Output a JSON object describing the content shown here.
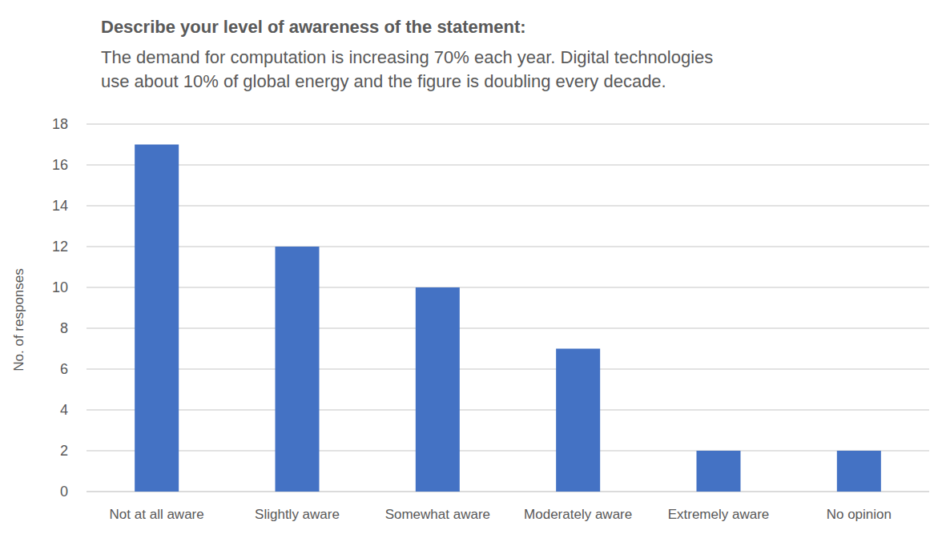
{
  "chart_data": {
    "type": "bar",
    "title": "Describe your level of awareness of the statement:",
    "subtitle": [
      "The demand for computation is increasing 70% each year. Digital technologies",
      "use about 10% of global energy and the figure is doubling every decade."
    ],
    "y_label": "No. of responses",
    "categories": [
      "Not at all aware",
      "Slightly aware",
      "Somewhat aware",
      "Moderately aware",
      "Extremely aware",
      "No opinion"
    ],
    "values": [
      17,
      12,
      10,
      7,
      2,
      2
    ],
    "color": "#4472c4",
    "ylim": [
      0,
      18
    ],
    "yticks": [
      0,
      2,
      4,
      6,
      8,
      10,
      12,
      14,
      16,
      18
    ],
    "grid": true
  }
}
